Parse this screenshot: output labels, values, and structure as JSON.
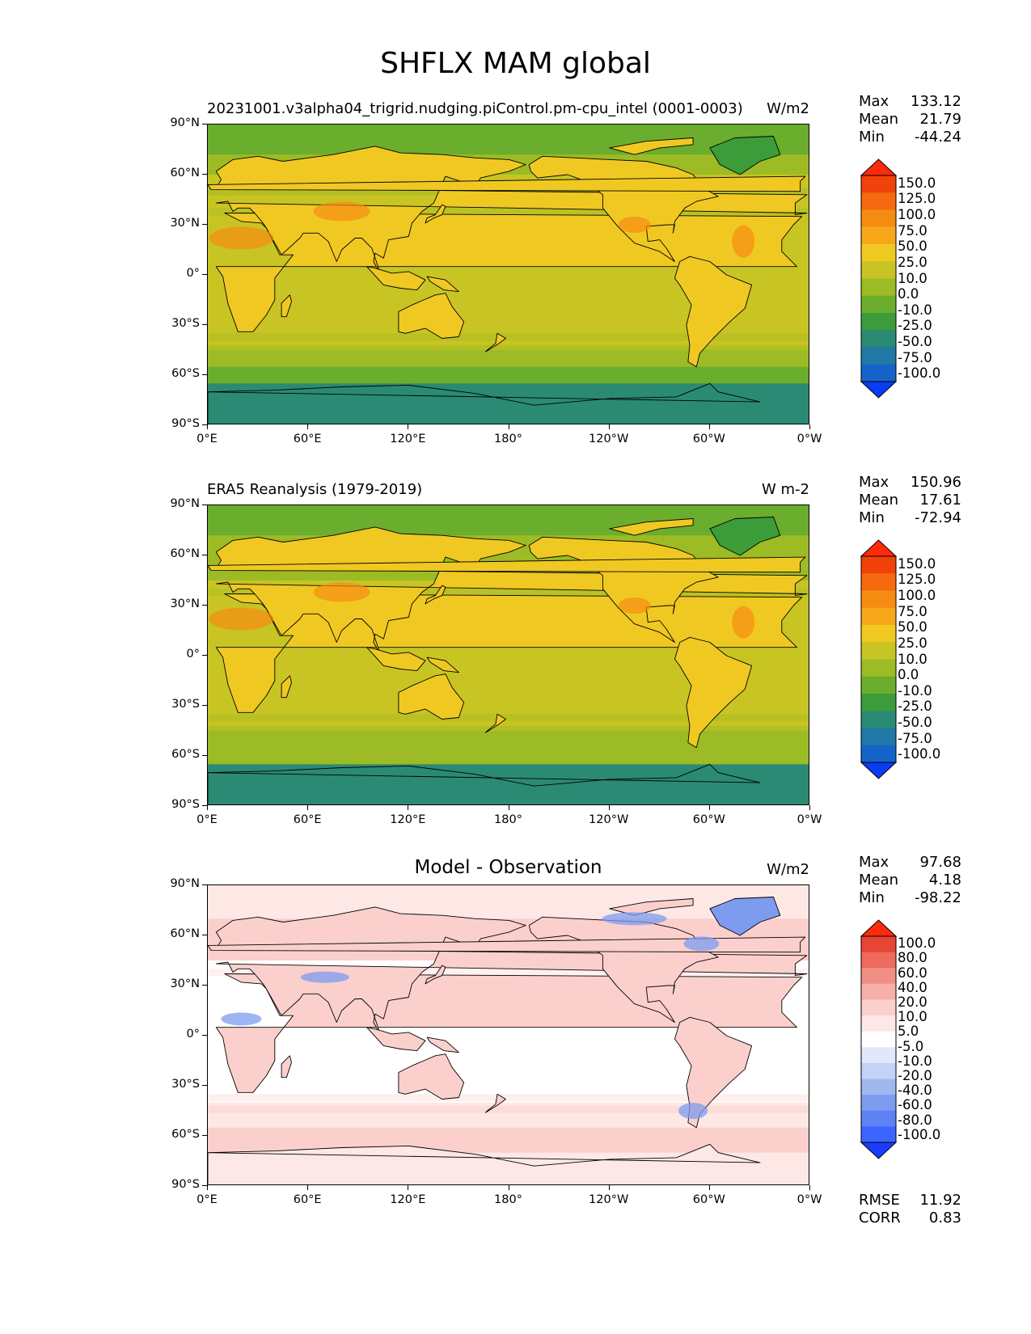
{
  "figure": {
    "title": "SHFLX MAM global"
  },
  "panels": [
    {
      "id": "test",
      "subtitle": "20231001.v3alpha04_trigrid.nudging.piControl.pm-cpu_intel (0001-0003)",
      "units": "W/m2",
      "stats": {
        "max_label": "Max",
        "max": "133.12",
        "mean_label": "Mean",
        "mean": "21.79",
        "min_label": "Min",
        "min": "-44.24"
      },
      "colorbar_labels": [
        "150.0",
        "125.0",
        "100.0",
        "75.0",
        "50.0",
        "25.0",
        "10.0",
        "0.0",
        "-10.0",
        "-25.0",
        "-50.0",
        "-75.0",
        "-100.0"
      ]
    },
    {
      "id": "reference",
      "subtitle": "ERA5 Reanalysis (1979-2019)",
      "units": "W m-2",
      "stats": {
        "max_label": "Max",
        "max": "150.96",
        "mean_label": "Mean",
        "mean": "17.61",
        "min_label": "Min",
        "min": "-72.94"
      },
      "colorbar_labels": [
        "150.0",
        "125.0",
        "100.0",
        "75.0",
        "50.0",
        "25.0",
        "10.0",
        "0.0",
        "-10.0",
        "-25.0",
        "-50.0",
        "-75.0",
        "-100.0"
      ]
    },
    {
      "id": "difference",
      "subtitle": "Model - Observation",
      "units": "W/m2",
      "stats": {
        "max_label": "Max",
        "max": "97.68",
        "mean_label": "Mean",
        "mean": "4.18",
        "min_label": "Min",
        "min": "-98.22"
      },
      "colorbar_labels": [
        "100.0",
        "80.0",
        "60.0",
        "40.0",
        "20.0",
        "10.0",
        "5.0",
        "-5.0",
        "-10.0",
        "-20.0",
        "-40.0",
        "-60.0",
        "-80.0",
        "-100.0"
      ],
      "metrics": {
        "rmse_label": "RMSE",
        "rmse": "11.92",
        "corr_label": "CORR",
        "corr": "0.83"
      }
    }
  ],
  "axes": {
    "lat_labels": [
      "90°N",
      "60°N",
      "30°N",
      "0°",
      "30°S",
      "60°S",
      "90°S"
    ],
    "lon_labels": [
      "0°E",
      "60°E",
      "120°E",
      "180°",
      "120°W",
      "60°W",
      "0°W"
    ]
  },
  "colors": {
    "field": [
      "#0a3cf5",
      "#1463c8",
      "#1f78a5",
      "#2b8a73",
      "#3c9c3a",
      "#6bad2d",
      "#9cbb24",
      "#c8c423",
      "#f0c822",
      "#f7a81a",
      "#f78c12",
      "#f56a0e",
      "#f0420a",
      "#ff2a0a"
    ],
    "diff": [
      "#1a3cff",
      "#3c64ff",
      "#5c82f5",
      "#7d9cf0",
      "#a0b8f0",
      "#c4d2f5",
      "#e2e8fb",
      "#ffffff",
      "#fde8e6",
      "#fbd0cc",
      "#f7b0a8",
      "#f28f84",
      "#ed6a5c",
      "#e84536",
      "#ff2a0a"
    ]
  }
}
